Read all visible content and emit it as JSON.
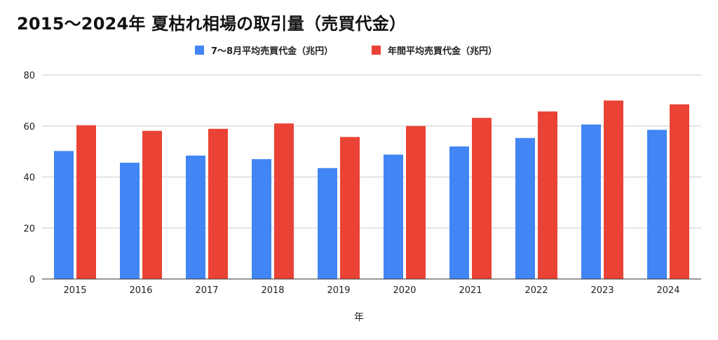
{
  "chart_data": {
    "type": "bar",
    "title": "2015〜2024年 夏枯れ相場の取引量（売買代金）",
    "xlabel": "年",
    "ylabel": "",
    "categories": [
      "2015",
      "2016",
      "2017",
      "2018",
      "2019",
      "2020",
      "2021",
      "2022",
      "2023",
      "2024"
    ],
    "series": [
      {
        "name": "7〜8月平均売買代金（兆円）",
        "color": "#4285f4",
        "values": [
          50.2,
          45.6,
          48.4,
          47.0,
          43.5,
          48.8,
          52.0,
          55.3,
          60.6,
          58.5
        ]
      },
      {
        "name": "年間平均売買代金（兆円）",
        "color": "#ea4335",
        "values": [
          60.3,
          58.1,
          58.9,
          61.0,
          55.7,
          60.0,
          63.2,
          65.7,
          70.0,
          68.5
        ]
      }
    ],
    "ylim": [
      0,
      80
    ],
    "yticks": [
      0,
      20,
      40,
      60,
      80
    ],
    "grid": true,
    "legend_position": "top-center"
  }
}
